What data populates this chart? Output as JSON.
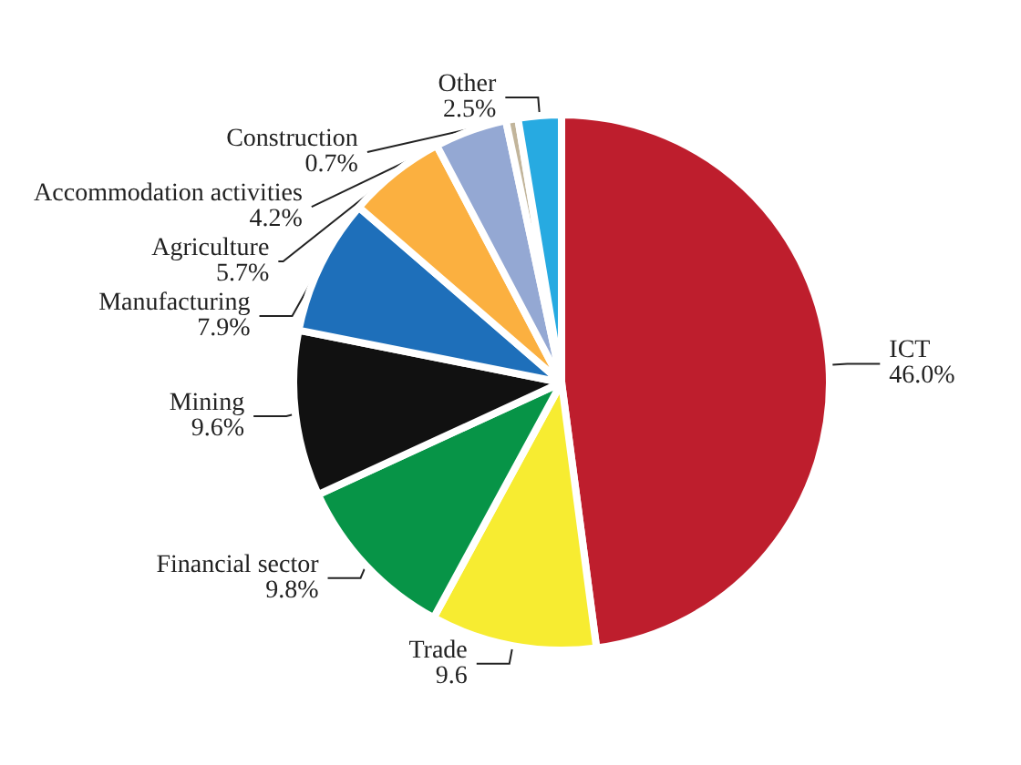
{
  "chart_data": {
    "type": "pie",
    "categories": [
      "ICT",
      "Trade",
      "Financial sector",
      "Mining",
      "Manufacturing",
      "Agriculture",
      "Accommodation activities",
      "Construction",
      "Other"
    ],
    "values": [
      46.0,
      9.6,
      9.8,
      9.6,
      7.9,
      5.7,
      4.2,
      0.7,
      2.5
    ],
    "value_labels": [
      "46.0%",
      "9.6",
      "9.8%",
      "9.6%",
      "7.9%",
      "5.7%",
      "4.2%",
      "0.7%",
      "2.5%"
    ],
    "colors": [
      "#be1e2d",
      "#f7ec31",
      "#079447",
      "#111111",
      "#1e6fba",
      "#fbb040",
      "#94a8d3",
      "#c2b59b",
      "#27aae1"
    ],
    "legend": false
  }
}
